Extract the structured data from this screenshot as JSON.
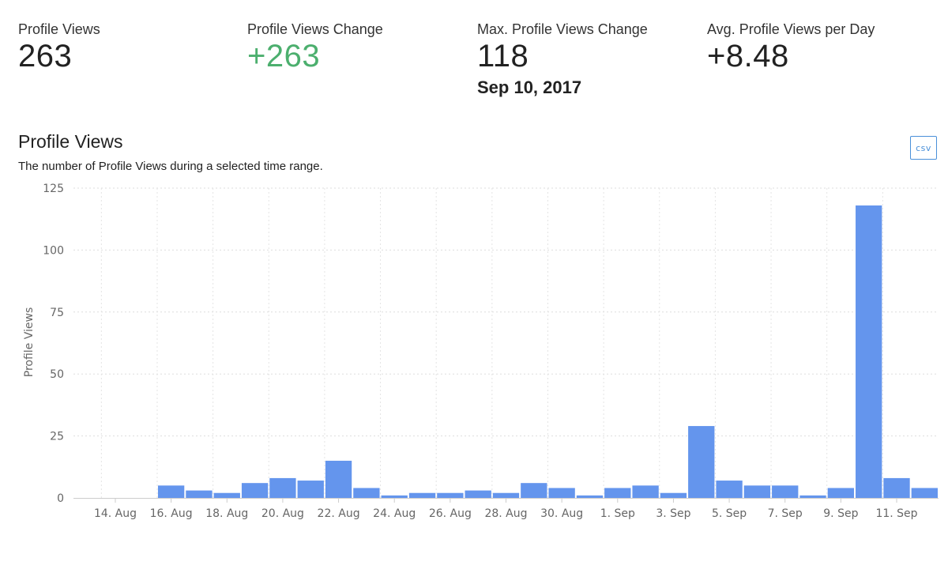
{
  "stats": {
    "profile_views": {
      "label": "Profile Views",
      "value": "263"
    },
    "profile_views_change": {
      "label": "Profile Views Change",
      "value": "+263",
      "color": "#4caf6e"
    },
    "max_change": {
      "label": "Max. Profile Views Change",
      "value": "118",
      "date": "Sep 10, 2017"
    },
    "avg_per_day": {
      "label": "Avg. Profile Views per Day",
      "value": "+8.48"
    }
  },
  "chart_header": {
    "title": "Profile Views",
    "subtitle": "The number of Profile Views during a selected time range.",
    "csv_label": "csv"
  },
  "chart_data": {
    "type": "bar",
    "categories": [
      "13 Aug",
      "14 Aug",
      "15 Aug",
      "16 Aug",
      "17 Aug",
      "18 Aug",
      "19 Aug",
      "20 Aug",
      "21 Aug",
      "22 Aug",
      "23 Aug",
      "24 Aug",
      "25 Aug",
      "26 Aug",
      "27 Aug",
      "28 Aug",
      "29 Aug",
      "30 Aug",
      "31 Aug",
      "1 Sep",
      "2 Sep",
      "3 Sep",
      "4 Sep",
      "5 Sep",
      "6 Sep",
      "7 Sep",
      "8 Sep",
      "9 Sep",
      "10 Sep",
      "11 Sep",
      "12 Sep"
    ],
    "values": [
      0,
      0,
      0,
      5,
      3,
      2,
      6,
      8,
      7,
      15,
      4,
      1,
      2,
      2,
      3,
      2,
      6,
      4,
      1,
      4,
      5,
      2,
      29,
      7,
      5,
      5,
      1,
      4,
      118,
      8,
      4
    ],
    "x_tick_labels": [
      "14. Aug",
      "16. Aug",
      "18. Aug",
      "20. Aug",
      "22. Aug",
      "24. Aug",
      "26. Aug",
      "28. Aug",
      "30. Aug",
      "1. Sep",
      "3. Sep",
      "5. Sep",
      "7. Sep",
      "9. Sep",
      "11. Sep"
    ],
    "y_ticks": [
      0,
      25,
      50,
      75,
      100,
      125
    ],
    "ylim": [
      0,
      125
    ],
    "xlabel": "",
    "ylabel": "Profile Views",
    "bar_color": "#6495ed",
    "grid": true
  }
}
